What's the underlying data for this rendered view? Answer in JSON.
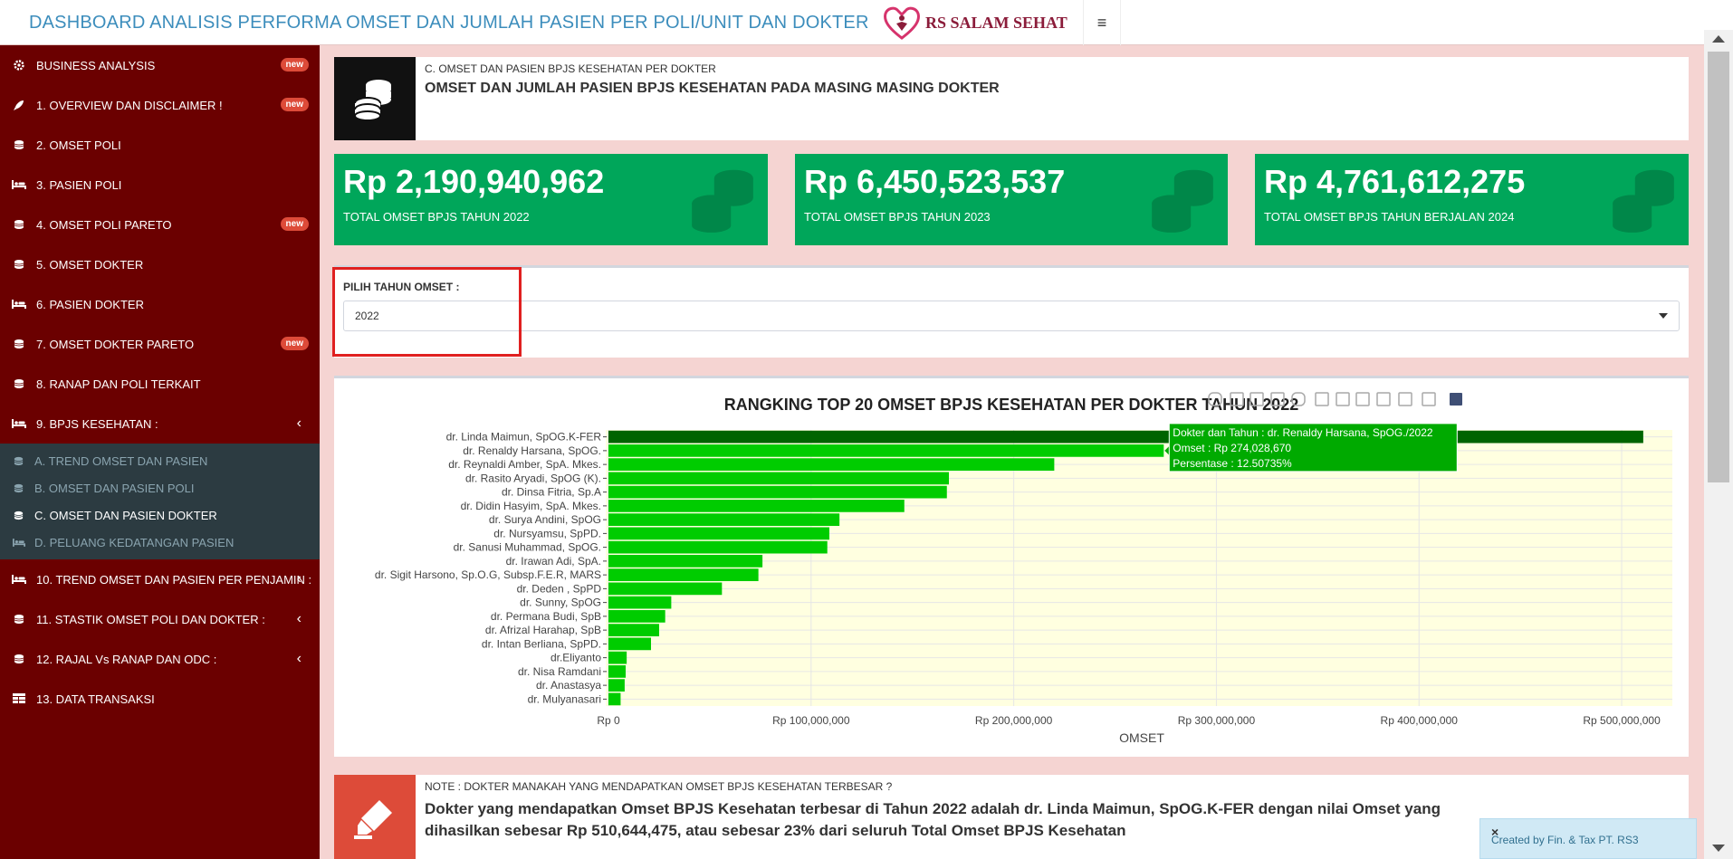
{
  "header": {
    "title": "DASHBOARD ANALISIS PERFORMA OMSET DAN JUMLAH PASIEN PER POLI/UNIT DAN DOKTER",
    "logo_text": "RS SALAM SEHAT",
    "menu_icon": "hamburger-icon"
  },
  "sidebar": {
    "items": [
      {
        "label": "BUSINESS ANALYSIS",
        "icon": "gear-icon",
        "badge": "new"
      },
      {
        "label": "1. OVERVIEW DAN DISCLAIMER !",
        "icon": "rocket-icon",
        "badge": "new"
      },
      {
        "label": "2. OMSET POLI",
        "icon": "coins-icon",
        "badge": ""
      },
      {
        "label": "3. PASIEN POLI",
        "icon": "bed-icon",
        "badge": ""
      },
      {
        "label": "4. OMSET POLI PARETO",
        "icon": "coins-icon",
        "badge": "new"
      },
      {
        "label": "5. OMSET DOKTER",
        "icon": "coins-icon",
        "badge": ""
      },
      {
        "label": "6. PASIEN DOKTER",
        "icon": "bed-icon",
        "badge": ""
      },
      {
        "label": "7. OMSET DOKTER PARETO",
        "icon": "coins-icon",
        "badge": "new"
      },
      {
        "label": "8. RANAP DAN POLI TERKAIT",
        "icon": "coins-icon",
        "badge": ""
      },
      {
        "label": "9. BPJS KESEHATAN :",
        "icon": "bed-icon",
        "badge": ""
      }
    ],
    "submenu": [
      {
        "label": "A. TREND OMSET DAN PASIEN",
        "icon": "coins-icon"
      },
      {
        "label": "B. OMSET DAN PASIEN POLI",
        "icon": "coins-icon"
      },
      {
        "label": "C. OMSET DAN PASIEN DOKTER",
        "icon": "coins-icon"
      },
      {
        "label": "D. PELUANG KEDATANGAN PASIEN",
        "icon": "bed-icon"
      }
    ],
    "items_after": [
      {
        "label": "10. TREND OMSET DAN PASIEN PER PENJAMIN :",
        "icon": "bed-icon"
      },
      {
        "label": "11. STASTIK OMSET POLI DAN DOKTER :",
        "icon": "coins-icon"
      },
      {
        "label": "12. RAJAL Vs RANAP DAN ODC :",
        "icon": "coins-icon"
      },
      {
        "label": "13. DATA TRANSAKSI",
        "icon": "table-icon"
      }
    ]
  },
  "top_box": {
    "subtitle": "C. OMSET DAN PASIEN BPJS KESEHATAN PER DOKTER",
    "title": "OMSET DAN JUMLAH PASIEN BPJS KESEHATAN PADA MASING MASING DOKTER"
  },
  "value_boxes": [
    {
      "value": "Rp 2,190,940,962",
      "label": "TOTAL OMSET BPJS TAHUN 2022"
    },
    {
      "value": "Rp 6,450,523,537",
      "label": "TOTAL OMSET BPJS TAHUN 2023"
    },
    {
      "value": "Rp 4,761,612,275",
      "label": "TOTAL OMSET BPJS TAHUN BERJALAN 2024"
    }
  ],
  "year_select": {
    "label": "PILIH TAHUN OMSET :",
    "value": "2022"
  },
  "chart_data": {
    "type": "bar",
    "orientation": "horizontal",
    "title": "RANGKING TOP 20 OMSET BPJS KESEHATAN PER DOKTER TAHUN 2022",
    "xlabel": "OMSET",
    "ylabel": "",
    "xlim": [
      0,
      525000000
    ],
    "x_ticks": [
      {
        "value": 0,
        "label": "Rp 0"
      },
      {
        "value": 100000000,
        "label": "Rp 100,000,000"
      },
      {
        "value": 200000000,
        "label": "Rp 200,000,000"
      },
      {
        "value": 300000000,
        "label": "Rp 300,000,000"
      },
      {
        "value": 400000000,
        "label": "Rp 400,000,000"
      },
      {
        "value": 500000000,
        "label": "Rp 500,000,000"
      }
    ],
    "categories": [
      "dr. Linda Maimun, SpOG.K-FER",
      "dr. Renaldy Harsana, SpOG.",
      "dr. Reynaldi Amber, SpA. Mkes.",
      "dr. Rasito Aryadi, SpOG (K).",
      "dr. Dinsa Fitria, Sp.A",
      "dr. Didin Hasyim, SpA. Mkes.",
      "dr. Surya Andini, SpOG",
      "dr. Nursyamsu, SpPD.",
      "dr. Sanusi Muhammad, SpOG.",
      "dr. Irawan Adi, SpA.",
      "dr. Sigit Harsono, Sp.O.G, Subsp.F.E.R, MARS",
      "dr. Deden , SpPD",
      "dr. Sunny, SpOG",
      "dr. Permana Budi, SpB",
      "dr. Afrizal Harahap, SpB",
      "dr. Intan Berliana, SpPD.",
      "dr.Eliyanto",
      "dr. Nisa Ramdani",
      "dr. Anastasya",
      "dr. Mulyanasari"
    ],
    "values": [
      510644475,
      274028670,
      220000000,
      168000000,
      167000000,
      146000000,
      114000000,
      109000000,
      108000000,
      76000000,
      74000000,
      56000000,
      31000000,
      28000000,
      25000000,
      21000000,
      9000000,
      8500000,
      8000000,
      6000000
    ],
    "colors": {
      "top": "#006400",
      "bars": "#00cc00",
      "plot_bg": "#ffffe0"
    },
    "grid": true,
    "tooltip": {
      "lines": [
        "Dokter dan Tahun : dr. Renaldy Harsana, SpOG./2022",
        "Omset : Rp 274,028,670",
        "Persentase : 12.50735%"
      ],
      "category_index": 1
    },
    "modebar_icons": [
      "camera-icon",
      "zoom-icon",
      "pan-icon",
      "box-select-icon",
      "lasso-icon",
      "zoom-in-icon",
      "zoom-out-icon",
      "autoscale-icon",
      "home-icon",
      "spike-icon",
      "compare-icon",
      "plotly-logo-icon"
    ]
  },
  "note": {
    "subtitle": "NOTE : DOKTER MANAKAH YANG MENDAPATKAN OMSET BPJS KESEHATAN TERBESAR ?",
    "text": "Dokter yang mendapatkan Omset BPJS Kesehatan terbesar di Tahun 2022 adalah dr. Linda Maimun, SpOG.K-FER dengan nilai Omset yang dihasilkan sebesar Rp 510,644,475, atau sebesar 23% dari seluruh Total Omset BPJS Kesehatan"
  },
  "credit": {
    "text": "Created by Fin. & Tax PT. RS3",
    "close": "×"
  },
  "colors": {
    "sidebar": "#6b0000",
    "accent_green": "#00a65a",
    "badge_red": "#dd4b39"
  }
}
